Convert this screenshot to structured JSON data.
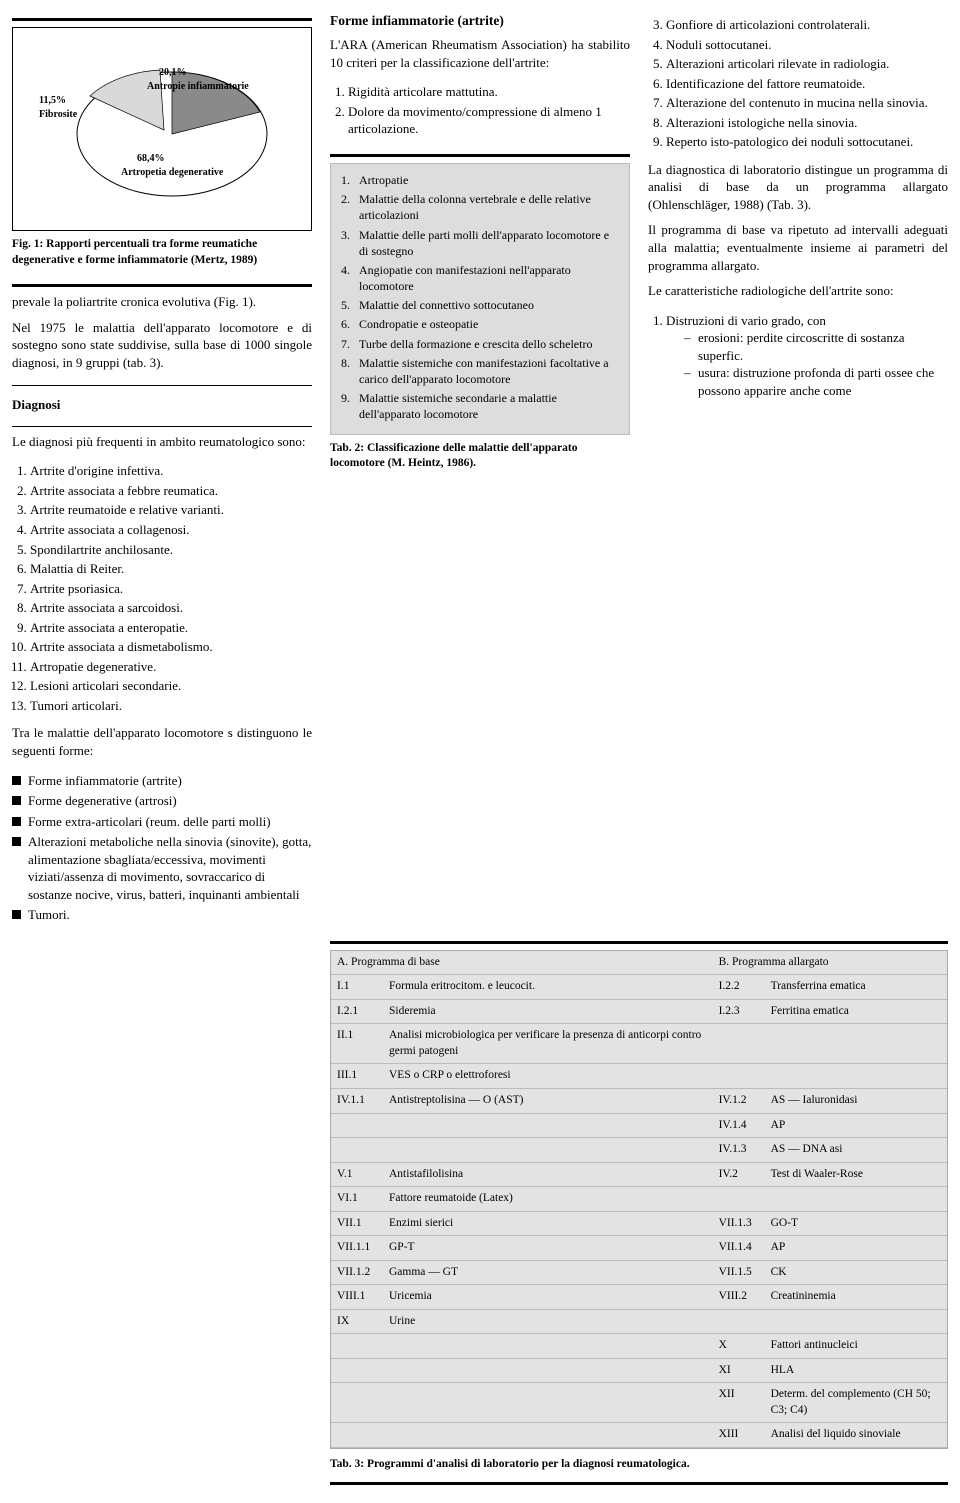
{
  "fig1": {
    "slices": [
      {
        "label": "Antropie infiammatorie",
        "pct": "20,1%",
        "value": 20.1,
        "color": "#8a8a8a"
      },
      {
        "label": "Fibrosite",
        "pct": "11,5%",
        "value": 11.5,
        "color": "#d9d9d9"
      },
      {
        "label": "Artropetia degenerative",
        "pct": "68,4%",
        "value": 68.4,
        "color": "#ffffff"
      }
    ],
    "caption": "Fig. 1: Rapporti percentuali tra forme reumatiche degenerative e forme infiammatorie (Mertz, 1989)"
  },
  "col1": {
    "p1": "prevale la poliartrite cronica evolutiva (Fig. 1).",
    "p2": "Nel 1975 le malattia dell'apparato locomotore e di sostegno sono state suddivise, sulla base di 1000 singole diagnosi, in 9 gruppi (tab. 3).",
    "diag_h": "Diagnosi",
    "p3": "Le diagnosi più frequenti in ambito reumatologico sono:",
    "diag_list": [
      "Artrite d'origine infettiva.",
      "Artrite associata a febbre reumatica.",
      "Artrite reumatoide e relative varianti.",
      "Artrite associata a collagenosi.",
      "Spondilartrite anchilosante.",
      "Malattia di Reiter.",
      "Artrite psoriasica.",
      "Artrite associata a sarcoidosi.",
      "Artrite associata a enteropatie.",
      "Artrite associata a dismetabolismo.",
      "Artropatie degenerative.",
      "Lesioni articolari secondarie.",
      "Tumori articolari."
    ],
    "p4": "Tra le malattie dell'apparato locomotore s distinguono le seguenti forme:",
    "forms": [
      "Forme infiammatorie (artrite)",
      "Forme degenerative (artrosi)",
      "Forme extra-articolari (reum. delle parti molli)",
      "Alterazioni metaboliche nella sinovia (sinovite), gotta, alimentazione sbagliata/eccessiva, movimenti viziati/assenza di movimento, sovraccarico di sostanze nocive, virus, batteri, inquinanti ambientali",
      "Tumori."
    ]
  },
  "col2": {
    "h": "Forme infiammatorie (artrite)",
    "p1": "L'ARA (American Rheumatism Association) ha stabilito 10 criteri per la classificazione dell'artrite:",
    "c1": "Rigidità articolare mattutina.",
    "c2": "Dolore da movimento/compressione di almeno 1 articolazione.",
    "greylist": [
      "Artropatie",
      "Malattie della colonna vertebrale e delle relative articolazioni",
      "Malattie delle parti molli dell'apparato locomotore e di sostegno",
      "Angiopatie con manifestazioni nell'apparato locomotore",
      "Malattie del connettivo sottocutaneo",
      "Condropatie e osteopatie",
      "Turbe della formazione e crescita dello scheletro",
      "Malattie sistemiche con manifestazioni facoltative a carico dell'apparato locomotore",
      "Malattie sistemiche secondarie a malattie dell'apparato locomotore"
    ],
    "tab2cap": "Tab. 2: Classificazione delle malattie dell'apparato locomotore (M. Heintz, 1986)."
  },
  "col3": {
    "cont": [
      "Gonfiore di articolazioni controlaterali.",
      "Noduli sottocutanei.",
      "Alterazioni articolari rilevate in radiologia.",
      "Identificazione del fattore reumatoide.",
      "Alterazione del contenuto in mucina nella sinovia.",
      "Alterazioni istologiche nella sinovia.",
      "Reperto isto-patologico dei noduli sottocutanei."
    ],
    "p1": "La diagnostica di laboratorio distingue un programma di analisi di base da un programma allargato (Ohlenschläger, 1988) (Tab. 3).",
    "p2": "Il programma di base va ripetuto ad intervalli adeguati alla malattia; eventualmente insieme ai parametri del programma allargato.",
    "p3": "Le caratteristiche radiologiche dell'artrite sono:",
    "r1": "Distruzioni di vario grado, con",
    "d1": "erosioni: perdite circoscritte di sostanza superfic.",
    "d2": "usura: distruzione profonda di parti ossee che possono apparire anche come"
  },
  "tab3": {
    "headA": "A.   Programma di base",
    "headB": "B.   Programma allargato",
    "rows": [
      [
        [
          "I.1",
          "Formula eritrocitom. e leucocit."
        ],
        [
          "I.2.2",
          "Transferrina ematica"
        ]
      ],
      [
        [
          "I.2.1",
          "Sideremia"
        ],
        [
          "I.2.3",
          "Ferritina ematica"
        ]
      ],
      [
        [
          "II.1",
          "Analisi microbiologica per verificare la presenza di anticorpi contro germi patogeni"
        ],
        [
          "",
          ""
        ]
      ],
      [
        [
          "III.1",
          "VES o CRP o elettroforesi"
        ],
        [
          "",
          ""
        ]
      ],
      [
        [
          "IV.1.1",
          "Antistreptolisina — O (AST)"
        ],
        [
          "IV.1.2",
          "AS — Ialuronidasi"
        ]
      ],
      [
        [
          "",
          ""
        ],
        [
          "IV.1.4",
          "AP"
        ]
      ],
      [
        [
          "",
          ""
        ],
        [
          "IV.1.3",
          "AS — DNA asi"
        ]
      ],
      [
        [
          "V.1",
          "Antistafilolisina"
        ],
        [
          "IV.2",
          "Test di Waaler-Rose"
        ]
      ],
      [
        [
          "VI.1",
          "Fattore reumatoide (Latex)"
        ],
        [
          "",
          ""
        ]
      ],
      [
        [
          "VII.1",
          "Enzimi sierici"
        ],
        [
          "VII.1.3",
          "GO-T"
        ]
      ],
      [
        [
          "VII.1.1",
          "GP-T"
        ],
        [
          "VII.1.4",
          "AP"
        ]
      ],
      [
        [
          "VII.1.2",
          "Gamma — GT"
        ],
        [
          "VII.1.5",
          "CK"
        ]
      ],
      [
        [
          "VIII.1",
          "Uricemia"
        ],
        [
          "VIII.2",
          "Creatininemia"
        ]
      ],
      [
        [
          "IX",
          "Urine"
        ],
        [
          "",
          ""
        ]
      ],
      [
        [
          "",
          ""
        ],
        [
          "X",
          "Fattori antinucleici"
        ]
      ],
      [
        [
          "",
          ""
        ],
        [
          "XI",
          "HLA"
        ]
      ],
      [
        [
          "",
          ""
        ],
        [
          "XII",
          "Determ. del complemento (CH 50; C3; C4)"
        ]
      ],
      [
        [
          "",
          ""
        ],
        [
          "XIII",
          "Analisi del liquido sinoviale"
        ]
      ]
    ],
    "caption": "Tab. 3: Programmi d'analisi di laboratorio per la diagnosi reumatologica."
  }
}
